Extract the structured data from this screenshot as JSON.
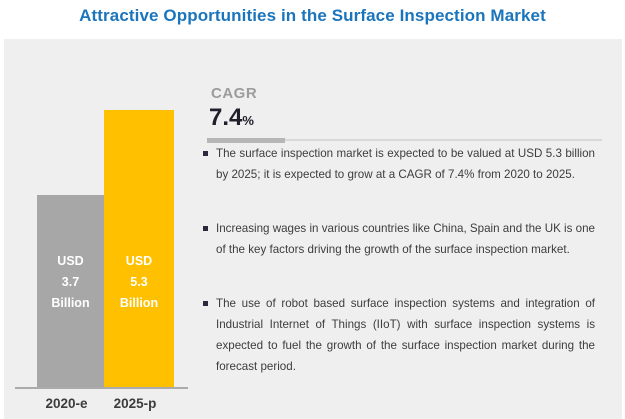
{
  "title": "Attractive Opportunities in the Surface Inspection Market",
  "cagr": {
    "label": "CAGR",
    "value": "7.4",
    "unit": "%"
  },
  "bars": [
    {
      "label": "2020-e",
      "lines": [
        "USD",
        "3.7",
        "Billion"
      ]
    },
    {
      "label": "2025-p",
      "lines": [
        "USD",
        "5.3",
        "Billion"
      ]
    }
  ],
  "bullets": [
    "The surface inspection market is expected to be valued at USD 5.3 billion by 2025; it is expected to grow at a CAGR of 7.4% from 2020 to 2025.",
    "Increasing wages in various countries like China, Spain and the UK is one of the key factors driving the growth of the surface inspection market.",
    "The use of robot based surface inspection systems and integration of Industrial Internet of Things (IIoT) with surface inspection systems is expected to fuel the growth of the surface inspection market during the forecast period."
  ],
  "colors": {
    "title_blue": "#1b75bc",
    "bar_2020": "#a7a7a7",
    "bar_2025": "#ffc000",
    "panel_background": "#f0efef",
    "bar_value_text": "#ffffff",
    "cagr_value_text": "#20202c"
  },
  "chart_data": {
    "type": "bar",
    "title": "Attractive Opportunities in the Surface Inspection Market",
    "categories": [
      "2020-e",
      "2025-p"
    ],
    "values": [
      3.7,
      5.3
    ],
    "value_unit": "USD Billion",
    "value_labels": [
      "USD 3.7 Billion",
      "USD 5.3 Billion"
    ],
    "annotations": [
      "CAGR 7.4%"
    ],
    "xlabel": "",
    "ylabel": "",
    "ylim": [
      0,
      5.8
    ],
    "grid": false,
    "legend": false,
    "bar_colors": [
      "#a7a7a7",
      "#ffc000"
    ]
  }
}
